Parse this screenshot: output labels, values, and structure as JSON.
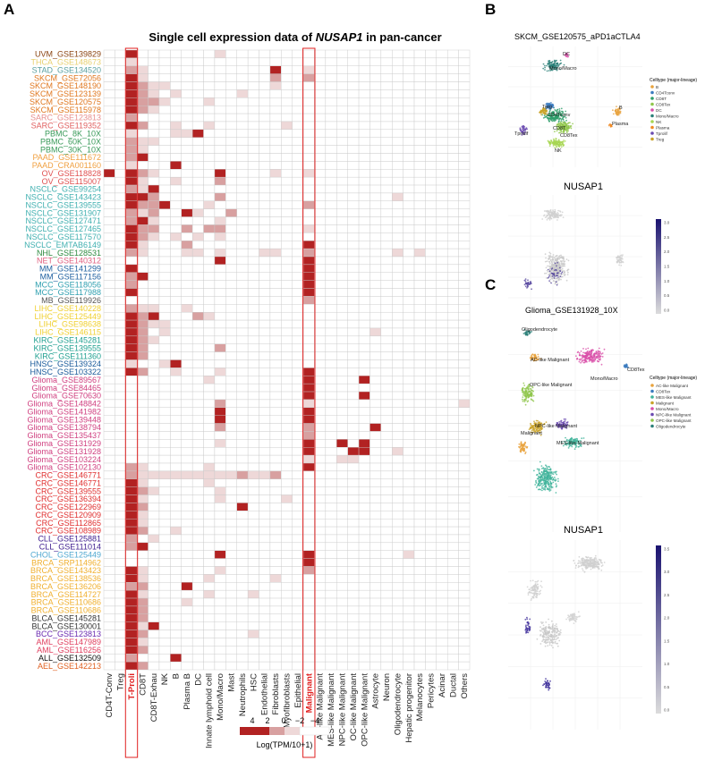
{
  "panel_labels": {
    "a": "A",
    "b": "B",
    "c": "C"
  },
  "heatmap": {
    "title_prefix": "Single cell expression data of ",
    "title_gene": "NUSAP1",
    "title_suffix": " in pan-cancer",
    "legend_title": "Log(TPM/10+1)",
    "legend_ticks": [
      "4",
      "2",
      "0",
      "−2",
      "−4"
    ]
  },
  "colors": {
    "high": "#b22222",
    "mid": "#d8a0a0",
    "low": "#eed8d8",
    "grid": "#c8c8c8",
    "highlight_box": "#e02020"
  },
  "panel_b": {
    "title": "SKCM_GSE120575_aPD1aCTLA4",
    "legend_title": "Celltype (major-lineage)",
    "legend_items": [
      {
        "label": "B",
        "color": "#e8a33d"
      },
      {
        "label": "CD4Tconv",
        "color": "#3a7bbf"
      },
      {
        "label": "CD8T",
        "color": "#2e9e6a"
      },
      {
        "label": "CD8Tex",
        "color": "#8fc64a"
      },
      {
        "label": "DC",
        "color": "#d94fa9"
      },
      {
        "label": "Mono/Macro",
        "color": "#2b7f78"
      },
      {
        "label": "NK",
        "color": "#a6d650"
      },
      {
        "label": "Plasma",
        "color": "#f08a24"
      },
      {
        "label": "Tprolif",
        "color": "#6a4ab0"
      },
      {
        "label": "Treg",
        "color": "#c9a227"
      }
    ],
    "cluster_labels": [
      "DC",
      "Mono/Macro",
      "Treg",
      "CD4Tconv",
      "CD8T",
      "CD8Tex",
      "NK",
      "Tprolif",
      "B",
      "Plasma"
    ],
    "feature_title": "NUSAP1",
    "colorbar_ticks": [
      "3.0",
      "2.5",
      "2.0",
      "1.5",
      "1.0",
      "0.5",
      "0.0"
    ]
  },
  "panel_c": {
    "title": "Glioma_GSE131928_10X",
    "legend_title": "Celltype (major-lineage)",
    "legend_items": [
      {
        "label": "AC-like Malignant",
        "color": "#e8a33d"
      },
      {
        "label": "CD8Tex",
        "color": "#3a7bbf"
      },
      {
        "label": "MES-like Malignant",
        "color": "#3fb39a"
      },
      {
        "label": "Malignant",
        "color": "#c9a227"
      },
      {
        "label": "Mono/Macro",
        "color": "#d94fa9"
      },
      {
        "label": "NPC-like Malignant",
        "color": "#6a4ab0"
      },
      {
        "label": "OPC-like Malignant",
        "color": "#8fc64a"
      },
      {
        "label": "Oligodendrocyte",
        "color": "#2b7f78"
      }
    ],
    "cluster_labels": [
      "Oligodendrocyte",
      "AC-like Malignant",
      "OPC-like Malignant",
      "Mono/Macro",
      "CD8Tex",
      "NPC-like Malignant",
      "Malignant",
      "MES-like Malignant"
    ],
    "feature_title": "NUSAP1",
    "colorbar_ticks": [
      "3.5",
      "3.0",
      "2.5",
      "2.0",
      "1.5",
      "1.0",
      "0.5",
      "0.0"
    ]
  },
  "chart_data": {
    "type": "heatmap",
    "title": "Single cell expression data of NUSAP1 in pan-cancer",
    "value_scale": "Log(TPM/10+1)",
    "legend_range": [
      -4,
      4
    ],
    "highlighted_columns": [
      "T-Proli",
      "Malignant"
    ],
    "columns": [
      "CD4T-Conv",
      "Treg",
      "T-Proli",
      "CD8T",
      "CD8T-Exhau",
      "NK",
      "B",
      "Plasma B",
      "DC",
      "Innate lymphoid cell",
      "Mono/Macro",
      "Mast",
      "Neutrophils",
      "HSC",
      "Endothelial",
      "Fibroblasts",
      "Myofibroblasts",
      "Epithelial",
      "Malignant",
      "AC-like Malignant",
      "MES-like Malignant",
      "NPC-like Malignant",
      "OC-like Malignant",
      "OPC-like Malignant",
      "Astrocyte",
      "Neuron",
      "Oligodendrocyte",
      "Hepatic progenitor",
      "Melanocytes",
      "Pericytes",
      "Acinar",
      "Ductal",
      "Others"
    ],
    "rows": [
      {
        "label": "UVM_GSE139829",
        "color": "#8b4513"
      },
      {
        "label": "THCA_GSE148673",
        "color": "#e8d070"
      },
      {
        "label": "STAD_GSE134520",
        "color": "#5aa0a0"
      },
      {
        "label": "SKCM_GSE72056",
        "color": "#e07820"
      },
      {
        "label": "SKCM_GSE148190",
        "color": "#e07820"
      },
      {
        "label": "SKCM_GSE123139",
        "color": "#e07820"
      },
      {
        "label": "SKCM_GSE120575",
        "color": "#e07820"
      },
      {
        "label": "SKCM_GSE115978",
        "color": "#e07820"
      },
      {
        "label": "SARC_GSE123813",
        "color": "#e89090"
      },
      {
        "label": "SARC_GSE119352",
        "color": "#e06060"
      },
      {
        "label": "PBMC_8K_10X",
        "color": "#3a9a5a"
      },
      {
        "label": "PBMC_60K_10X",
        "color": "#3a9a5a"
      },
      {
        "label": "PBMC_30K_10X",
        "color": "#3a9a5a"
      },
      {
        "label": "PAAD_GSE111672",
        "color": "#f0a040"
      },
      {
        "label": "PAAD_CRA001160",
        "color": "#f0a040"
      },
      {
        "label": "OV_GSE118828",
        "color": "#e05050"
      },
      {
        "label": "OV_GSE115007",
        "color": "#e05050"
      },
      {
        "label": "NSCLC_GSE99254",
        "color": "#40b0b0"
      },
      {
        "label": "NSCLC_GSE143423",
        "color": "#40b0b0"
      },
      {
        "label": "NSCLC_GSE139555",
        "color": "#40b0b0"
      },
      {
        "label": "NSCLC_GSE131907",
        "color": "#40b0b0"
      },
      {
        "label": "NSCLC_GSE127471",
        "color": "#40b0b0"
      },
      {
        "label": "NSCLC_GSE127465",
        "color": "#40b0b0"
      },
      {
        "label": "NSCLC_GSE117570",
        "color": "#40b0b0"
      },
      {
        "label": "NSCLC_EMTAB6149",
        "color": "#40b0b0"
      },
      {
        "label": "NHL_GSE128531",
        "color": "#2e8b40"
      },
      {
        "label": "NET_GSE140312",
        "color": "#e06080"
      },
      {
        "label": "MM_GSE141299",
        "color": "#2060a0"
      },
      {
        "label": "MM_GSE117156",
        "color": "#2060a0"
      },
      {
        "label": "MCC_GSE118056",
        "color": "#30a0b0"
      },
      {
        "label": "MCC_GSE117988",
        "color": "#30a0b0"
      },
      {
        "label": "MB_GSE119926",
        "color": "#555555"
      },
      {
        "label": "LIHC_GSE140228",
        "color": "#f0d030"
      },
      {
        "label": "LIHC_GSE125449",
        "color": "#f0d030"
      },
      {
        "label": "LIHC_GSE98638",
        "color": "#f0d030"
      },
      {
        "label": "LIHC_GSE146115",
        "color": "#f0d030"
      },
      {
        "label": "KIRC_GSE145281",
        "color": "#20a090"
      },
      {
        "label": "KIRC_GSE139555",
        "color": "#20a090"
      },
      {
        "label": "KIRC_GSE111360",
        "color": "#20a090"
      },
      {
        "label": "HNSC_GSE139324",
        "color": "#1a5a9a"
      },
      {
        "label": "HNSC_GSE103322",
        "color": "#1a5a9a"
      },
      {
        "label": "Glioma_GSE89567",
        "color": "#d04080"
      },
      {
        "label": "Glioma_GSE84465",
        "color": "#d04080"
      },
      {
        "label": "Glioma_GSE70630",
        "color": "#d04080"
      },
      {
        "label": "Glioma_GSE148842",
        "color": "#d04080"
      },
      {
        "label": "Glioma_GSE141982",
        "color": "#d04080"
      },
      {
        "label": "Glioma_GSE139448",
        "color": "#d04080"
      },
      {
        "label": "Glioma_GSE138794",
        "color": "#d04080"
      },
      {
        "label": "Glioma_GSE135437",
        "color": "#d04080"
      },
      {
        "label": "Glioma_GSE131929",
        "color": "#d04080"
      },
      {
        "label": "Glioma_GSE131928",
        "color": "#d04080"
      },
      {
        "label": "Glioma_GSE103224",
        "color": "#d04080"
      },
      {
        "label": "Glioma_GSE102130",
        "color": "#d04080"
      },
      {
        "label": "CRC_GSE146771",
        "color": "#e03030"
      },
      {
        "label": "CRC_GSE146771",
        "color": "#e03030"
      },
      {
        "label": "CRC_GSE139555",
        "color": "#e03030"
      },
      {
        "label": "CRC_GSE136394",
        "color": "#e03030"
      },
      {
        "label": "CRC_GSE122969",
        "color": "#e03030"
      },
      {
        "label": "CRC_GSE120909",
        "color": "#e03030"
      },
      {
        "label": "CRC_GSE112865",
        "color": "#e03030"
      },
      {
        "label": "CRC_GSE108989",
        "color": "#e03030"
      },
      {
        "label": "CLL_GSE125881",
        "color": "#402090"
      },
      {
        "label": "CLL_GSE111014",
        "color": "#402090"
      },
      {
        "label": "CHOL_GSE125449",
        "color": "#50a8d0"
      },
      {
        "label": "BRCA_SRP114962",
        "color": "#f0b030"
      },
      {
        "label": "BRCA_GSE143423",
        "color": "#f0b030"
      },
      {
        "label": "BRCA_GSE138536",
        "color": "#f0b030"
      },
      {
        "label": "BRCA_GSE136206",
        "color": "#f0b030"
      },
      {
        "label": "BRCA_GSE114727",
        "color": "#f0b030"
      },
      {
        "label": "BRCA_GSE110686",
        "color": "#f0b030"
      },
      {
        "label": "BRCA_GSE110686",
        "color": "#f0b030"
      },
      {
        "label": "BLCA_GSE145281",
        "color": "#333333"
      },
      {
        "label": "BLCA_GSE130001",
        "color": "#333333"
      },
      {
        "label": "BCC_GSE123813",
        "color": "#6a2ab0"
      },
      {
        "label": "AML_GSE147989",
        "color": "#e04060"
      },
      {
        "label": "AML_GSE116256",
        "color": "#e04060"
      },
      {
        "label": "ALL_GSE132509",
        "color": "#111111"
      },
      {
        "label": "AEL_GSE142213",
        "color": "#e06020"
      }
    ],
    "cells_note": "values per cell: 3 = high (~4), 2 = medium (~2), 1 = low (~0), 0 = not detected",
    "cells": [
      "003000000010000000000000000000000",
      "001000000000000000000000000000000",
      "002100000000000300100000000000000",
      "003100000000000200200000000000000",
      "003211000000000100000000000000000",
      "003210100000100000000000000000000",
      "003221000100000000000000000000000",
      "003210000000000000000000000000000",
      "002000000000000000000000000000000",
      "003200100100000010000000000000000",
      "001000113000000000000000000000000",
      "002110000000000000000000000000000",
      "002100000000000000000000000000000",
      "002300000000000000000000000000000",
      "001000300000000000000000000000000",
      "303210000030000100100000000000000",
      "003100100020000000000000000000000",
      "002130000000000000000000000000000",
      "003320000020000000000000001000000",
      "003223000100000000200000000000000",
      "002120031002000000000000000000000",
      "002310000010000000000000000000000",
      "003220020220000000100000000000000",
      "003210101010000000000000000000000",
      "003100020000000000300000000000000",
      "002100011010001100200000001010000",
      "000000000030000000300000000000000",
      "003000000000000000300000000000000",
      "002300000000000000300000000000000",
      "002000000000000000300000000000000",
      "003000000000000000300000000000000",
      "000000000000000000200000000000000",
      "002110010000000000000000000000000",
      "003230002100000000000000000000000",
      "003211000000000000000000000000000",
      "003201000000000000000000100000000",
      "003210000000000000000000000000000",
      "003200000020000000000000000000000",
      "003200000000000000000000000000000",
      "001001300000000000000000000000000",
      "003200100010000000300000000000000",
      "000000000100000000300003000000000",
      "000000000000000000300000000000000",
      "000000000000000000300003000000000",
      "000000000020000000100000000000001",
      "000000000030000000300000000000000",
      "000000000030000000300000000000000",
      "000000000020000000200000300000000",
      "000000000000000000200000000000000",
      "000000000010000000300303000000000",
      "000000000000000000300033001000000",
      "000000000000000000100110000000000",
      "002100000100000000300000000000000",
      "002111111111211200000000000000000",
      "003100000100000000000000000000000",
      "003210000010000000000000000000000",
      "003100000010000010000000000000000",
      "003200000000300000000000000000000",
      "003100000000000000000000000000000",
      "003100000000000000000000000000000",
      "003200100000000000000000000000000",
      "002010000000000000000000000000000",
      "002300000000000000000000000000000",
      "000000000030000000300000000100000",
      "000000000000000000300000000000000",
      "003100000010000000200000000000000",
      "003100000100000100000000000000000",
      "002200030000000000000000000000000",
      "003100000100010000000000000000000",
      "003200010000000000000000000000000",
      "003200000000000000000000000000000",
      "003200000000000000000000000000000",
      "003130000000000000000000000000000",
      "003200000000010000000000000000000",
      "003100000000000000000000000000000",
      "003200000000000000000000000000000",
      "002000300000000000000000000000000",
      "003200000000000000000000000000000"
    ]
  }
}
